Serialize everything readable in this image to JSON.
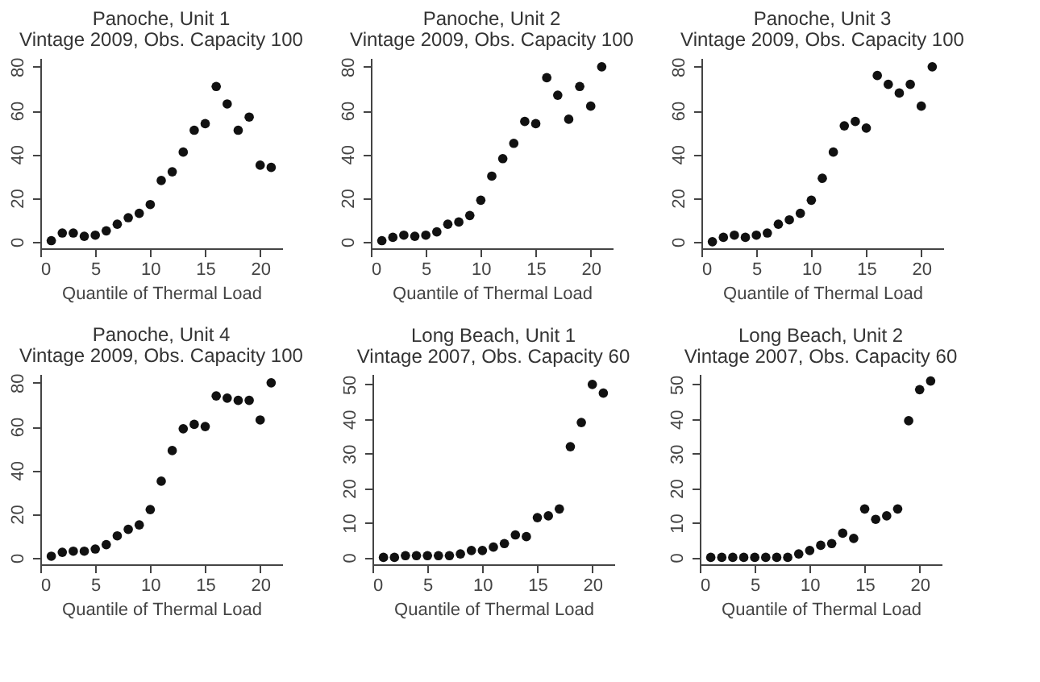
{
  "chart_data": [
    {
      "type": "scatter",
      "title": "Panoche, Unit 1",
      "subtitle": "Vintage 2009, Obs. Capacity 100",
      "xlabel": "Quantile of Thermal Load",
      "marker": "circle",
      "grid": false,
      "xlim": [
        0,
        22
      ],
      "xticks": [
        0,
        5,
        10,
        15,
        20
      ],
      "ylim": [
        -3,
        84
      ],
      "yticks": [
        0,
        20,
        40,
        60,
        80
      ],
      "series": [
        {
          "color": "#111111",
          "x": [
            1,
            2,
            3,
            4,
            5,
            6,
            7,
            8,
            9,
            10,
            11,
            12,
            13,
            14,
            15,
            16,
            17,
            18,
            19,
            20,
            21
          ],
          "values": [
            0.5,
            4,
            4,
            2.5,
            3,
            5,
            8,
            11,
            13,
            17,
            28,
            32,
            41,
            51,
            54,
            71,
            63,
            51,
            57,
            35,
            34
          ]
        }
      ]
    },
    {
      "type": "scatter",
      "title": "Panoche, Unit 2",
      "subtitle": "Vintage 2009, Obs. Capacity 100",
      "xlabel": "Quantile of Thermal Load",
      "marker": "circle",
      "grid": false,
      "xlim": [
        0,
        22
      ],
      "xticks": [
        0,
        5,
        10,
        15,
        20
      ],
      "ylim": [
        -3,
        84
      ],
      "yticks": [
        0,
        20,
        40,
        60,
        80
      ],
      "series": [
        {
          "color": "#111111",
          "x": [
            1,
            2,
            3,
            4,
            5,
            6,
            7,
            8,
            9,
            10,
            11,
            12,
            13,
            14,
            15,
            16,
            17,
            18,
            19,
            20,
            21
          ],
          "values": [
            0.5,
            2,
            3,
            2.5,
            3,
            4.5,
            8,
            9,
            12,
            19,
            30,
            38,
            45,
            55,
            54,
            75,
            67,
            56,
            71,
            62,
            80
          ]
        }
      ]
    },
    {
      "type": "scatter",
      "title": "Panoche, Unit 3",
      "subtitle": "Vintage 2009, Obs. Capacity 100",
      "xlabel": "Quantile of Thermal Load",
      "marker": "circle",
      "grid": false,
      "xlim": [
        0,
        22
      ],
      "xticks": [
        0,
        5,
        10,
        15,
        20
      ],
      "ylim": [
        -3,
        84
      ],
      "yticks": [
        0,
        20,
        40,
        60,
        80
      ],
      "series": [
        {
          "color": "#111111",
          "x": [
            1,
            2,
            3,
            4,
            5,
            6,
            7,
            8,
            9,
            10,
            11,
            12,
            13,
            14,
            15,
            16,
            17,
            18,
            19,
            20,
            21
          ],
          "values": [
            0,
            2,
            3,
            2,
            3,
            4,
            8,
            10,
            13,
            19,
            29,
            41,
            53,
            55,
            52,
            76,
            72,
            68,
            72,
            62,
            80
          ]
        }
      ]
    },
    {
      "type": "scatter",
      "title": "Panoche, Unit 4",
      "subtitle": "Vintage 2009, Obs. Capacity 100",
      "xlabel": "Quantile of Thermal Load",
      "marker": "circle",
      "grid": false,
      "xlim": [
        0,
        22
      ],
      "xticks": [
        0,
        5,
        10,
        15,
        20
      ],
      "ylim": [
        -3,
        84
      ],
      "yticks": [
        0,
        20,
        40,
        60,
        80
      ],
      "series": [
        {
          "color": "#111111",
          "x": [
            1,
            2,
            3,
            4,
            5,
            6,
            7,
            8,
            9,
            10,
            11,
            12,
            13,
            14,
            15,
            16,
            17,
            18,
            19,
            20,
            21
          ],
          "values": [
            0.7,
            2.5,
            3,
            3,
            4,
            6,
            10,
            13,
            15,
            22,
            35,
            49,
            59,
            61,
            60,
            74,
            73,
            72,
            72,
            63,
            80
          ]
        }
      ]
    },
    {
      "type": "scatter",
      "title": "Long Beach, Unit 1",
      "subtitle": "Vintage 2007, Obs. Capacity 60",
      "xlabel": "Quantile of Thermal Load",
      "marker": "circle",
      "grid": false,
      "xlim": [
        0,
        22
      ],
      "xticks": [
        0,
        5,
        10,
        15,
        20
      ],
      "ylim": [
        -2,
        53
      ],
      "yticks": [
        0,
        10,
        20,
        30,
        40,
        50
      ],
      "series": [
        {
          "color": "#111111",
          "x": [
            1,
            2,
            3,
            4,
            5,
            6,
            7,
            8,
            9,
            10,
            11,
            12,
            13,
            14,
            15,
            16,
            17,
            18,
            19,
            20,
            21
          ],
          "values": [
            0,
            0,
            0.5,
            0.5,
            0.5,
            0.5,
            0.5,
            1,
            2,
            2,
            3,
            4,
            6.5,
            6,
            11.5,
            12,
            14,
            32,
            39,
            50,
            47.5
          ]
        }
      ]
    },
    {
      "type": "scatter",
      "title": "Long Beach, Unit 2",
      "subtitle": "Vintage 2007, Obs. Capacity 60",
      "xlabel": "Quantile of Thermal Load",
      "marker": "circle",
      "grid": false,
      "xlim": [
        0,
        22
      ],
      "xticks": [
        0,
        5,
        10,
        15,
        20
      ],
      "ylim": [
        -2,
        53
      ],
      "yticks": [
        0,
        10,
        20,
        30,
        40,
        50
      ],
      "series": [
        {
          "color": "#111111",
          "x": [
            1,
            2,
            3,
            4,
            5,
            6,
            7,
            8,
            9,
            10,
            11,
            12,
            13,
            14,
            15,
            16,
            17,
            18,
            19,
            20,
            21
          ],
          "values": [
            0,
            0,
            0,
            0,
            0,
            0,
            0,
            0,
            1,
            2,
            3.5,
            4,
            7,
            5.5,
            14,
            11,
            12,
            14,
            39.5,
            48.5,
            51
          ]
        }
      ]
    }
  ]
}
